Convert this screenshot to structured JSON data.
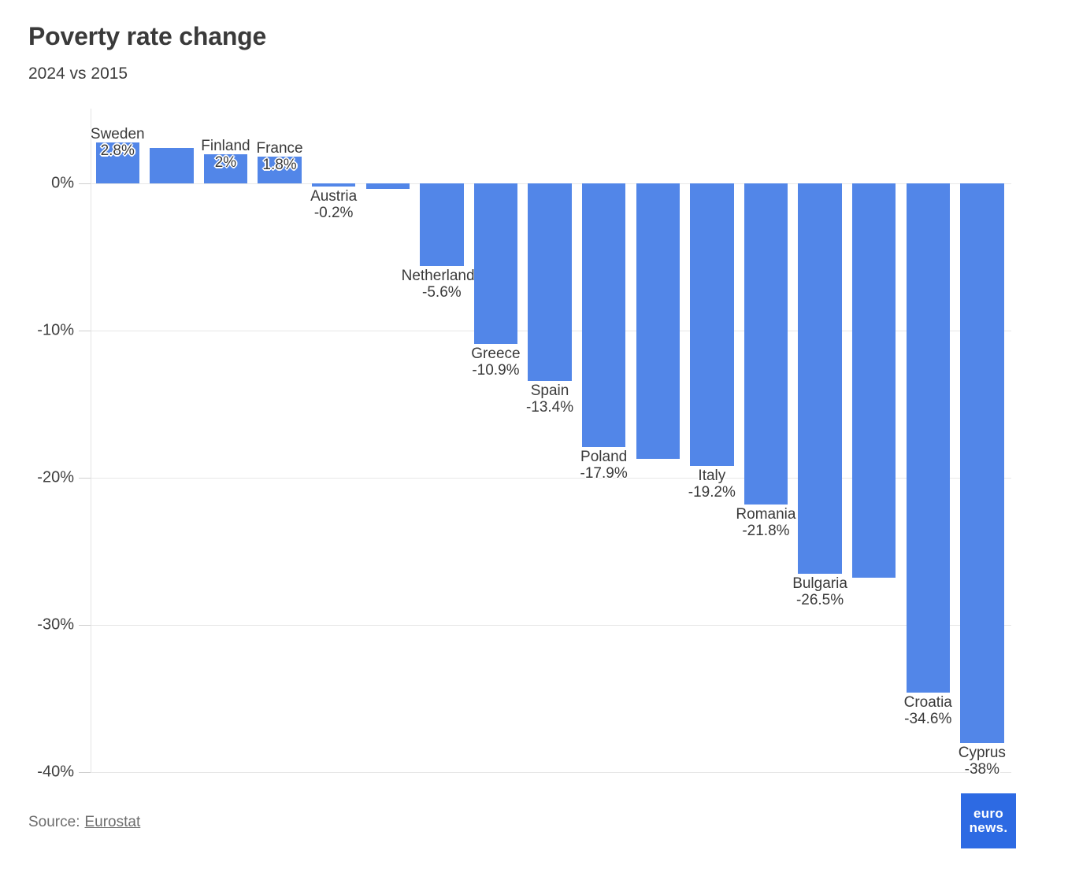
{
  "header": {
    "title": "Poverty rate change",
    "subtitle": "2024 vs 2015"
  },
  "chart_data": {
    "type": "bar",
    "title": "Poverty rate change",
    "subtitle": "2024 vs 2015",
    "orientation": "vertical-columns",
    "unit": "%",
    "ylim": [
      -40,
      5
    ],
    "yticks": [
      0,
      -10,
      -20,
      -30,
      -40
    ],
    "ytick_labels": [
      "0%",
      "-10%",
      "-20%",
      "-30%",
      "-40%"
    ],
    "grid": true,
    "legend": false,
    "bar_color": "#5286e8",
    "bars": [
      {
        "label": "Sweden",
        "value": 2.8,
        "value_label": "2.8%",
        "labeled": true
      },
      {
        "label": "",
        "value": 2.4,
        "value_label": "",
        "labeled": false
      },
      {
        "label": "Finland",
        "value": 2,
        "value_label": "2%",
        "labeled": true
      },
      {
        "label": "France",
        "value": 1.8,
        "value_label": "1.8%",
        "labeled": true
      },
      {
        "label": "Austria",
        "value": -0.2,
        "value_label": "-0.2%",
        "labeled": true
      },
      {
        "label": "",
        "value": -0.4,
        "value_label": "",
        "labeled": false
      },
      {
        "label": "Netherlands",
        "value": -5.6,
        "value_label": "-5.6%",
        "labeled": true
      },
      {
        "label": "Greece",
        "value": -10.9,
        "value_label": "-10.9%",
        "labeled": true
      },
      {
        "label": "Spain",
        "value": -13.4,
        "value_label": "-13.4%",
        "labeled": true
      },
      {
        "label": "Poland",
        "value": -17.9,
        "value_label": "-17.9%",
        "labeled": true
      },
      {
        "label": "",
        "value": -18.7,
        "value_label": "",
        "labeled": false
      },
      {
        "label": "Italy",
        "value": -19.2,
        "value_label": "-19.2%",
        "labeled": true
      },
      {
        "label": "Romania",
        "value": -21.8,
        "value_label": "-21.8%",
        "labeled": true
      },
      {
        "label": "Bulgaria",
        "value": -26.5,
        "value_label": "-26.5%",
        "labeled": true
      },
      {
        "label": "",
        "value": -26.8,
        "value_label": "",
        "labeled": false
      },
      {
        "label": "Croatia",
        "value": -34.6,
        "value_label": "-34.6%",
        "labeled": true
      },
      {
        "label": "Cyprus",
        "value": -38,
        "value_label": "-38%",
        "labeled": true
      }
    ]
  },
  "footer": {
    "source_prefix": "Source:",
    "source_link": "Eurostat"
  },
  "logo": {
    "line1": "euro",
    "line2": "news."
  },
  "colors": {
    "bar": "#5286e8",
    "logo_background": "#2d6ae3",
    "text_dark": "#3a3a3a",
    "text_muted": "#6d6d6d",
    "gridline": "#e7e7e7"
  }
}
